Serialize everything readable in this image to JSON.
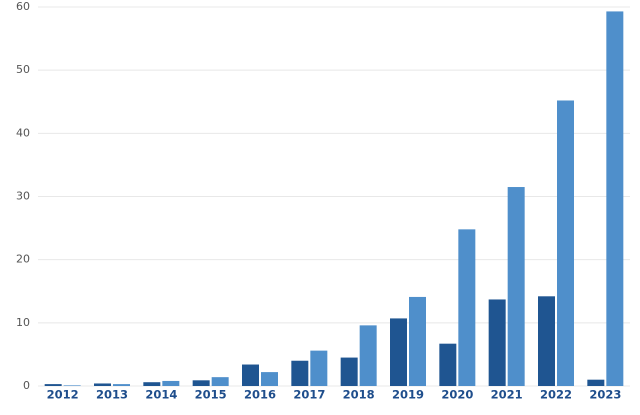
{
  "chart_data": {
    "type": "bar",
    "categories": [
      "2012",
      "2013",
      "2014",
      "2015",
      "2016",
      "2017",
      "2018",
      "2019",
      "2020",
      "2021",
      "2022",
      "2023"
    ],
    "series": [
      {
        "color": "#1f5591",
        "values": [
          0.3,
          0.4,
          0.6,
          0.9,
          3.4,
          4.0,
          4.5,
          10.7,
          6.7,
          13.7,
          14.2,
          1.0
        ]
      },
      {
        "color": "#4f8fcb",
        "values": [
          0.1,
          0.3,
          0.8,
          1.4,
          2.2,
          5.6,
          9.6,
          14.1,
          24.8,
          31.5,
          45.2,
          59.3
        ]
      }
    ],
    "ylim": [
      0,
      60
    ],
    "yticks": [
      0,
      10,
      20,
      30,
      40,
      50,
      60
    ],
    "grid": true
  }
}
